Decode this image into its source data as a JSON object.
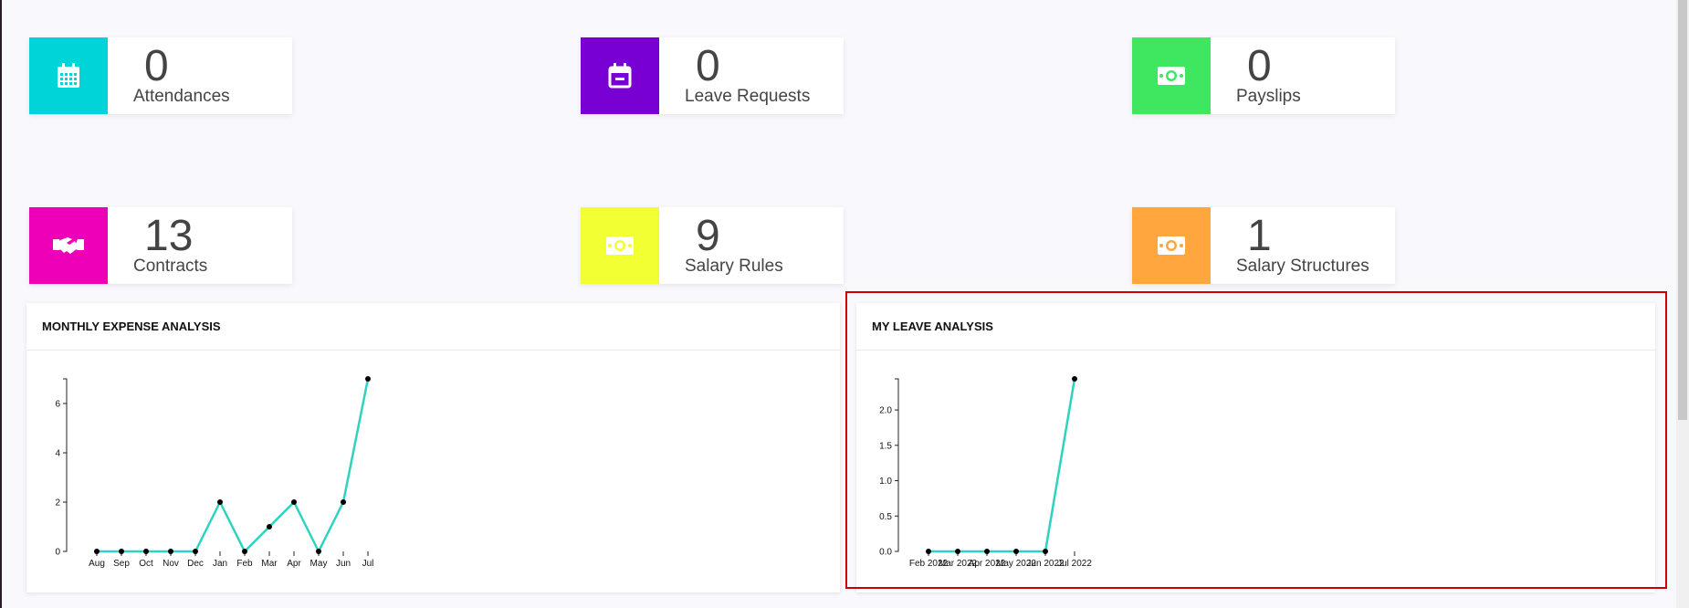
{
  "cards": [
    {
      "value": "0",
      "label": "Attendances",
      "color": "#00d4d8",
      "icon": "calendar-icon"
    },
    {
      "value": "0",
      "label": "Leave Requests",
      "color": "#7800d2",
      "icon": "calendar-minus-icon"
    },
    {
      "value": "0",
      "label": "Payslips",
      "color": "#3fe65f",
      "icon": "money-icon"
    },
    {
      "value": "13",
      "label": "Contracts",
      "color": "#ee00b8",
      "icon": "handshake-icon"
    },
    {
      "value": "9",
      "label": "Salary Rules",
      "color": "#f2ff33",
      "icon": "money-icon"
    },
    {
      "value": "1",
      "label": "Salary Structures",
      "color": "#ffa63f",
      "icon": "money-icon"
    }
  ],
  "chart_data": [
    {
      "type": "line",
      "title": "MONTHLY EXPENSE ANALYSIS",
      "categories": [
        "Aug",
        "Sep",
        "Oct",
        "Nov",
        "Dec",
        "Jan",
        "Feb",
        "Mar",
        "Apr",
        "May",
        "Jun",
        "Jul"
      ],
      "values": [
        0,
        0,
        0,
        0,
        0,
        2,
        0,
        1,
        2,
        0,
        2,
        7
      ],
      "yticks": [
        "0",
        "2",
        "4",
        "6"
      ],
      "ylim": [
        0,
        7
      ],
      "line_color": "#2ed3c0",
      "grid": false
    },
    {
      "type": "line",
      "title": "MY LEAVE ANALYSIS",
      "categories": [
        "Feb 2022",
        "Mar 2022",
        "Apr 2022",
        "May 2022",
        "Jun 2022",
        "Jul 2022"
      ],
      "values": [
        0,
        0,
        0,
        0,
        0,
        2.44
      ],
      "yticks": [
        "0.0",
        "0.5",
        "1.0",
        "1.5",
        "2.0"
      ],
      "ylim": [
        0,
        2.44
      ],
      "line_color": "#2ed3c0",
      "grid": false
    }
  ]
}
